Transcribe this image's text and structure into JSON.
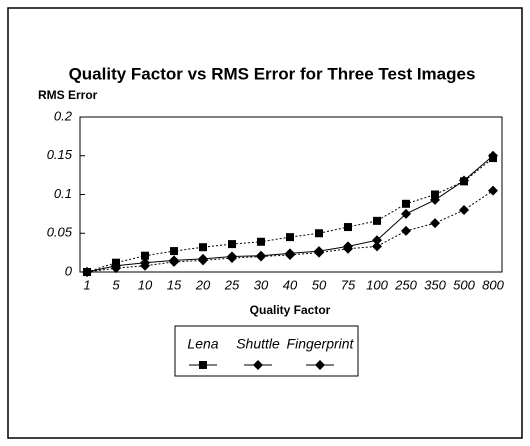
{
  "chart_data": {
    "type": "line",
    "title": "Quality Factor vs RMS Error for Three Test Images",
    "y_label": "RMS Error",
    "x_label": "Quality Factor",
    "categories": [
      "1",
      "5",
      "10",
      "15",
      "20",
      "25",
      "30",
      "40",
      "50",
      "75",
      "100",
      "250",
      "350",
      "500",
      "800"
    ],
    "series": [
      {
        "name": "Lena",
        "color": "#000000",
        "marker": "square",
        "dash": "2,2",
        "values": [
          0,
          0.012,
          0.021,
          0.027,
          0.032,
          0.036,
          0.039,
          0.045,
          0.05,
          0.058,
          0.066,
          0.088,
          0.1,
          0.117,
          0.147
        ]
      },
      {
        "name": "Shuttle",
        "color": "#000000",
        "marker": "diamond",
        "dash": "none",
        "values": [
          0,
          0.008,
          0.012,
          0.015,
          0.017,
          0.02,
          0.021,
          0.024,
          0.027,
          0.033,
          0.041,
          0.075,
          0.093,
          0.118,
          0.15
        ]
      },
      {
        "name": "Fingerprint",
        "color": "#000000",
        "marker": "diamond",
        "dash": "2,2",
        "values": [
          0,
          0.005,
          0.008,
          0.013,
          0.015,
          0.018,
          0.02,
          0.022,
          0.025,
          0.03,
          0.033,
          0.053,
          0.063,
          0.08,
          0.105
        ]
      }
    ],
    "ylim": [
      0,
      0.2
    ],
    "yticks": [
      0,
      0.05,
      0.1,
      0.15,
      0.2
    ],
    "grid": false
  }
}
